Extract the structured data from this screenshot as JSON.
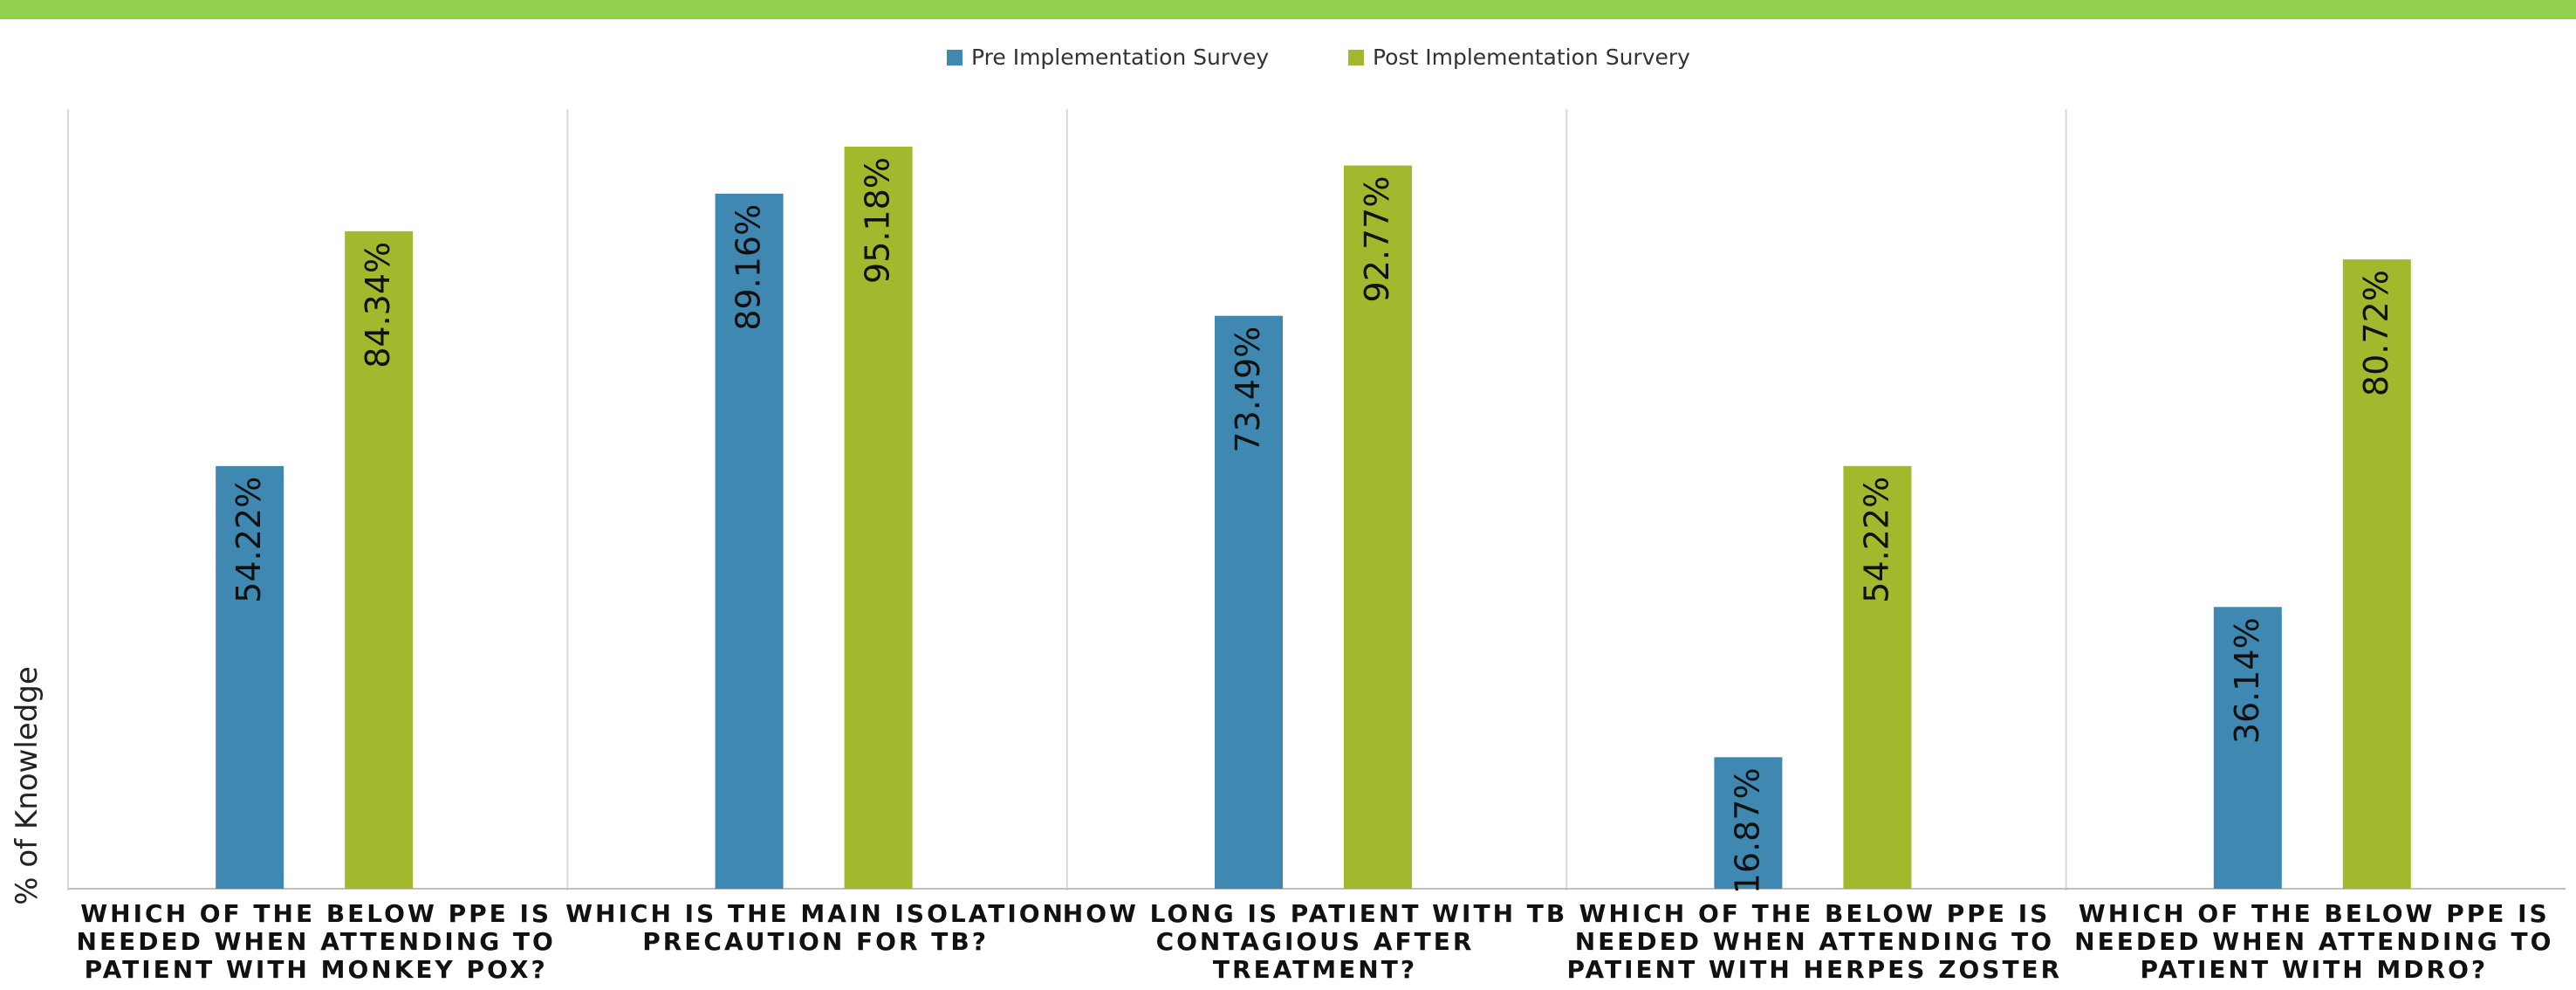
{
  "colors": {
    "top_bar": "#92d050",
    "pre": "#3f88b2",
    "post": "#a3b82c",
    "divider": "#d9d9d9",
    "axis": "#bfbfbf"
  },
  "chart_data": {
    "type": "bar",
    "title": "",
    "xlabel": "",
    "ylabel": "% of Knowledge",
    "ylim": [
      0,
      100
    ],
    "grid": false,
    "legend_position": "top-center",
    "value_format": "percent",
    "categories": [
      [
        "WHICH OF THE BELOW PPE IS",
        "NEEDED WHEN ATTENDING TO",
        "PATIENT WITH MONKEY POX?"
      ],
      [
        "WHICH IS THE MAIN ISOLATION",
        "PRECAUTION FOR TB?"
      ],
      [
        "HOW LONG IS PATIENT WITH TB",
        "CONTAGIOUS AFTER",
        "TREATMENT?"
      ],
      [
        "WHICH OF THE BELOW PPE IS",
        "NEEDED WHEN ATTENDING TO",
        "PATIENT WITH HERPES ZOSTER"
      ],
      [
        "WHICH OF THE BELOW PPE IS",
        "NEEDED WHEN ATTENDING TO",
        "PATIENT WITH MDRO?"
      ]
    ],
    "series": [
      {
        "name": "Pre Implementation Survey",
        "values": [
          54.22,
          89.16,
          73.49,
          16.87,
          36.14
        ],
        "labels": [
          "54.22%",
          "89.16%",
          "73.49%",
          "16.87%",
          "36.14%"
        ]
      },
      {
        "name": "Post Implementation Survery",
        "values": [
          84.34,
          95.18,
          92.77,
          54.22,
          80.72
        ],
        "labels": [
          "84.34%",
          "95.18%",
          "92.77%",
          "54.22%",
          "80.72%"
        ]
      }
    ]
  }
}
